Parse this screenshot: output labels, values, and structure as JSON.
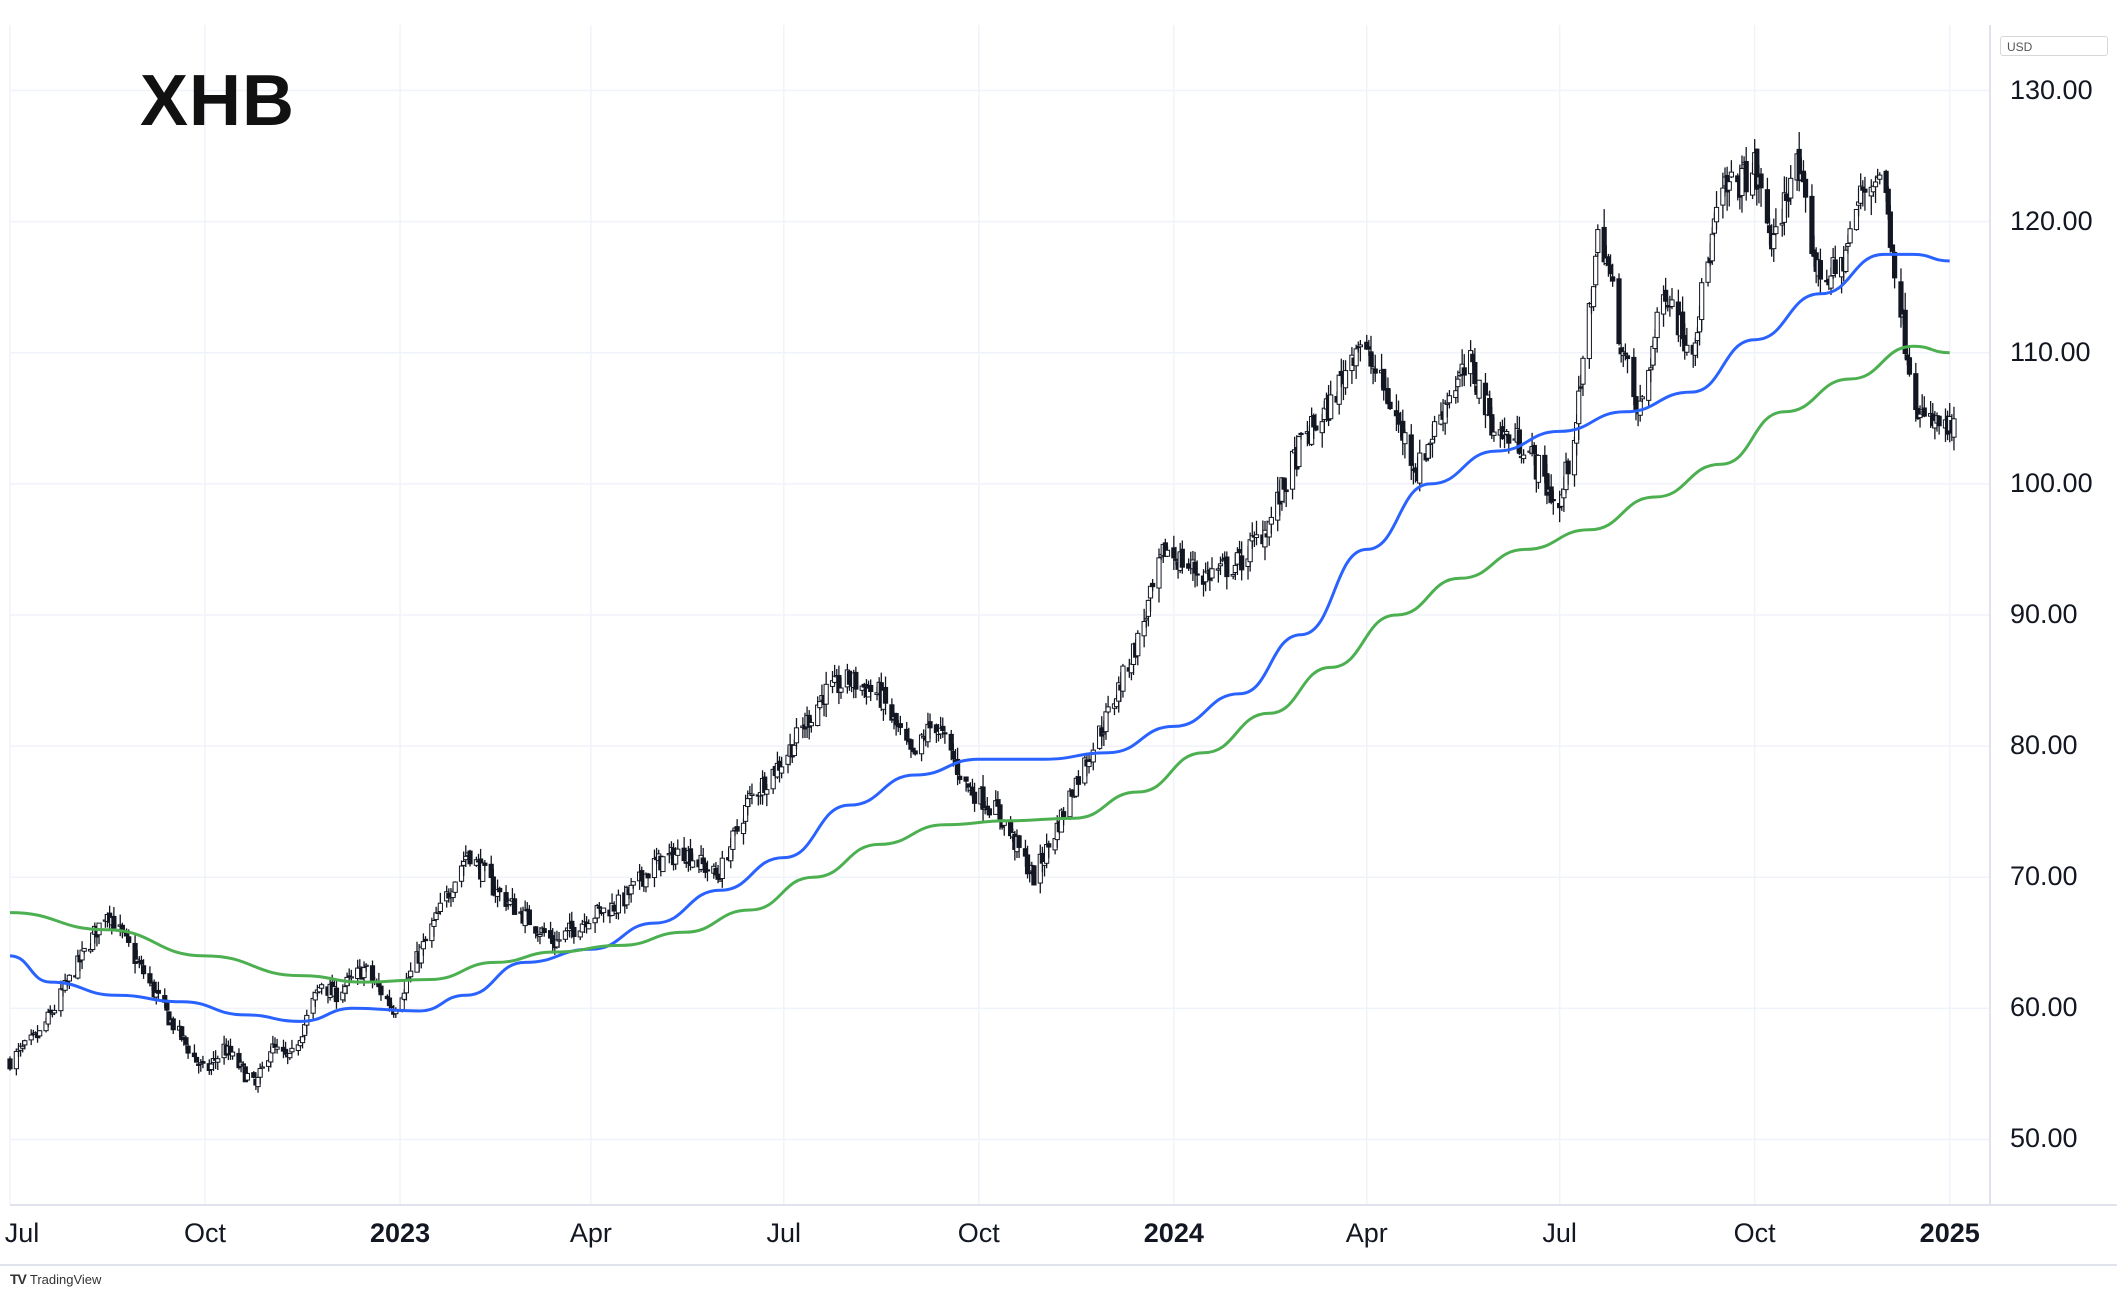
{
  "ticker": "XHB",
  "currency": "USD",
  "brand": {
    "logo": "TV",
    "name": "TradingView"
  },
  "chart_data": {
    "type": "candlestick",
    "title": "XHB",
    "grid": true,
    "ylim": [
      45,
      135
    ],
    "xlim": [
      "2022-07-01",
      "2025-01-20"
    ],
    "y_ticks": [
      {
        "value": 130,
        "label": "130.00"
      },
      {
        "value": 120,
        "label": "120.00"
      },
      {
        "value": 110,
        "label": "110.00"
      },
      {
        "value": 100,
        "label": "100.00"
      },
      {
        "value": 90,
        "label": "90.00"
      },
      {
        "value": 80,
        "label": "80.00"
      },
      {
        "value": 70,
        "label": "70.00"
      },
      {
        "value": 60,
        "label": "60.00"
      },
      {
        "value": 50,
        "label": "50.00"
      }
    ],
    "x_ticks": [
      {
        "date": "2022-07-01",
        "label": "Jul",
        "major": false
      },
      {
        "date": "2022-10-01",
        "label": "Oct",
        "major": false
      },
      {
        "date": "2023-01-01",
        "label": "2023",
        "major": true
      },
      {
        "date": "2023-04-01",
        "label": "Apr",
        "major": false
      },
      {
        "date": "2023-07-01",
        "label": "Jul",
        "major": false
      },
      {
        "date": "2023-10-01",
        "label": "Oct",
        "major": false
      },
      {
        "date": "2024-01-01",
        "label": "2024",
        "major": true
      },
      {
        "date": "2024-04-01",
        "label": "Apr",
        "major": false
      },
      {
        "date": "2024-07-01",
        "label": "Jul",
        "major": false
      },
      {
        "date": "2024-10-01",
        "label": "Oct",
        "major": false
      },
      {
        "date": "2025-01-01",
        "label": "2025",
        "major": true
      }
    ],
    "price_anchors": [
      [
        "2022-07-01",
        56
      ],
      [
        "2022-07-15",
        58
      ],
      [
        "2022-08-01",
        63
      ],
      [
        "2022-08-16",
        67.5
      ],
      [
        "2022-09-01",
        63
      ],
      [
        "2022-09-15",
        59
      ],
      [
        "2022-10-01",
        55
      ],
      [
        "2022-10-10",
        57
      ],
      [
        "2022-10-25",
        54
      ],
      [
        "2022-11-01",
        57
      ],
      [
        "2022-11-10",
        56
      ],
      [
        "2022-11-25",
        62
      ],
      [
        "2022-12-01",
        61
      ],
      [
        "2022-12-15",
        63
      ],
      [
        "2022-12-29",
        60
      ],
      [
        "2023-01-10",
        64
      ],
      [
        "2023-02-02",
        72
      ],
      [
        "2023-02-15",
        69
      ],
      [
        "2023-03-01",
        67
      ],
      [
        "2023-03-15",
        65
      ],
      [
        "2023-03-31",
        67
      ],
      [
        "2023-04-15",
        68
      ],
      [
        "2023-05-01",
        71
      ],
      [
        "2023-05-15",
        72
      ],
      [
        "2023-05-31",
        70
      ],
      [
        "2023-06-15",
        76
      ],
      [
        "2023-07-01",
        79
      ],
      [
        "2023-07-20",
        84
      ],
      [
        "2023-08-01",
        85
      ],
      [
        "2023-08-15",
        84
      ],
      [
        "2023-08-31",
        79
      ],
      [
        "2023-09-10",
        82
      ],
      [
        "2023-09-25",
        77
      ],
      [
        "2023-10-10",
        75
      ],
      [
        "2023-10-27",
        70
      ],
      [
        "2023-11-05",
        73
      ],
      [
        "2023-11-15",
        77
      ],
      [
        "2023-11-30",
        82
      ],
      [
        "2023-12-15",
        88
      ],
      [
        "2023-12-28",
        95
      ],
      [
        "2024-01-15",
        93
      ],
      [
        "2024-02-01",
        94
      ],
      [
        "2024-02-15",
        97
      ],
      [
        "2024-03-01",
        103
      ],
      [
        "2024-03-15",
        106
      ],
      [
        "2024-03-28",
        111
      ],
      [
        "2024-04-10",
        107
      ],
      [
        "2024-04-25",
        101
      ],
      [
        "2024-05-10",
        107
      ],
      [
        "2024-05-20",
        109
      ],
      [
        "2024-06-01",
        104
      ],
      [
        "2024-06-15",
        103
      ],
      [
        "2024-07-01",
        98
      ],
      [
        "2024-07-10",
        106
      ],
      [
        "2024-07-20",
        120
      ],
      [
        "2024-07-31",
        110
      ],
      [
        "2024-08-07",
        105
      ],
      [
        "2024-08-20",
        115
      ],
      [
        "2024-09-01",
        110
      ],
      [
        "2024-09-15",
        122
      ],
      [
        "2024-10-01",
        124
      ],
      [
        "2024-10-10",
        118
      ],
      [
        "2024-10-20",
        125
      ],
      [
        "2024-10-31",
        116
      ],
      [
        "2024-11-10",
        116
      ],
      [
        "2024-11-20",
        122
      ],
      [
        "2024-11-30",
        124
      ],
      [
        "2024-12-10",
        112
      ],
      [
        "2024-12-18",
        105
      ],
      [
        "2025-01-03",
        104
      ]
    ],
    "series": [
      {
        "color": "#2962ff",
        "points": [
          [
            "2022-07-01",
            64.0
          ],
          [
            "2022-07-20",
            62.0
          ],
          [
            "2022-08-20",
            61.0
          ],
          [
            "2022-09-20",
            60.5
          ],
          [
            "2022-10-20",
            59.5
          ],
          [
            "2022-11-15",
            59.0
          ],
          [
            "2022-12-10",
            60.0
          ],
          [
            "2023-01-10",
            59.8
          ],
          [
            "2023-02-01",
            61.0
          ],
          [
            "2023-03-01",
            63.5
          ],
          [
            "2023-04-01",
            64.5
          ],
          [
            "2023-05-01",
            66.5
          ],
          [
            "2023-06-01",
            69.0
          ],
          [
            "2023-07-01",
            71.5
          ],
          [
            "2023-08-01",
            75.5
          ],
          [
            "2023-09-01",
            77.8
          ],
          [
            "2023-10-01",
            79.0
          ],
          [
            "2023-11-01",
            79.0
          ],
          [
            "2023-12-01",
            79.5
          ],
          [
            "2024-01-01",
            81.5
          ],
          [
            "2024-02-01",
            84.0
          ],
          [
            "2024-03-01",
            88.5
          ],
          [
            "2024-04-01",
            95.0
          ],
          [
            "2024-05-01",
            100.0
          ],
          [
            "2024-06-01",
            102.5
          ],
          [
            "2024-07-01",
            104.0
          ],
          [
            "2024-08-01",
            105.5
          ],
          [
            "2024-09-01",
            107.0
          ],
          [
            "2024-10-01",
            111.0
          ],
          [
            "2024-11-01",
            114.5
          ],
          [
            "2024-12-01",
            117.5
          ],
          [
            "2024-12-15",
            117.5
          ],
          [
            "2025-01-01",
            117.0
          ]
        ]
      },
      {
        "color": "#4caf50",
        "points": [
          [
            "2022-07-01",
            67.3
          ],
          [
            "2022-08-15",
            66.0
          ],
          [
            "2022-10-01",
            64.0
          ],
          [
            "2022-11-15",
            62.5
          ],
          [
            "2022-12-15",
            62.0
          ],
          [
            "2023-01-15",
            62.2
          ],
          [
            "2023-02-15",
            63.5
          ],
          [
            "2023-03-15",
            64.3
          ],
          [
            "2023-04-15",
            64.8
          ],
          [
            "2023-05-15",
            65.8
          ],
          [
            "2023-06-15",
            67.5
          ],
          [
            "2023-07-15",
            70.0
          ],
          [
            "2023-08-15",
            72.5
          ],
          [
            "2023-09-15",
            74.0
          ],
          [
            "2023-10-15",
            74.3
          ],
          [
            "2023-11-15",
            74.5
          ],
          [
            "2023-12-15",
            76.5
          ],
          [
            "2024-01-15",
            79.5
          ],
          [
            "2024-02-15",
            82.5
          ],
          [
            "2024-03-15",
            86.0
          ],
          [
            "2024-04-15",
            90.0
          ],
          [
            "2024-05-15",
            92.8
          ],
          [
            "2024-06-15",
            95.0
          ],
          [
            "2024-07-15",
            96.5
          ],
          [
            "2024-08-15",
            99.0
          ],
          [
            "2024-09-15",
            101.5
          ],
          [
            "2024-10-15",
            105.5
          ],
          [
            "2024-11-15",
            108.0
          ],
          [
            "2024-12-15",
            110.5
          ],
          [
            "2025-01-01",
            110.0
          ]
        ]
      }
    ]
  }
}
